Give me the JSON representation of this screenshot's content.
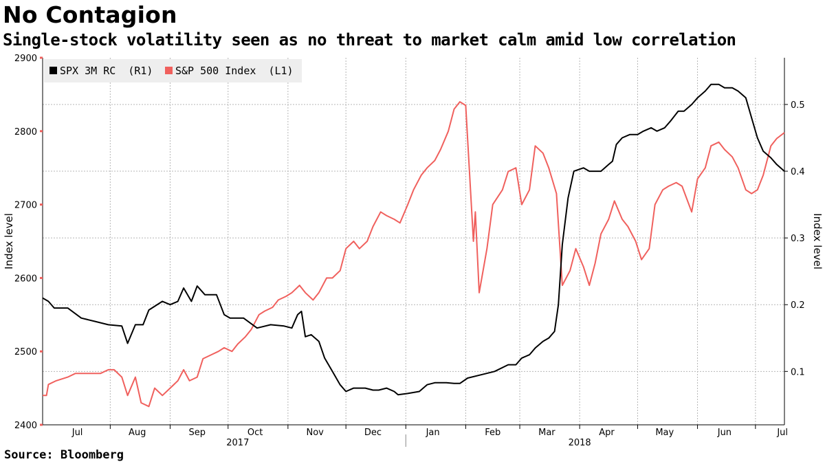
{
  "title": "No Contagion",
  "subtitle": "Single-stock volatility seen as no threat to market calm amid low correlation",
  "source": "Source: Bloomberg",
  "colors": {
    "corr": "#000000",
    "spx": "#f0605d",
    "grid": "#b5b5b5",
    "axis": "#000000"
  },
  "chart_data": {
    "type": "line",
    "title": "No Contagion",
    "subtitle": "Single-stock volatility seen as no threat to market calm amid low correlation",
    "grid": true,
    "legend_position": "top-left",
    "x_range": [
      "2017-06-27",
      "2018-07-16"
    ],
    "x_tick_labels": [
      "Jul",
      "Aug",
      "Sep",
      "Oct",
      "Nov",
      "Dec",
      "Jan",
      "Feb",
      "Mar",
      "Apr",
      "May",
      "Jun",
      "Jul"
    ],
    "x_tick_dates": [
      "2017-07-15",
      "2017-08-15",
      "2017-09-15",
      "2017-10-15",
      "2017-11-15",
      "2017-12-15",
      "2018-01-15",
      "2018-02-15",
      "2018-03-15",
      "2018-04-15",
      "2018-05-15",
      "2018-06-15",
      "2018-07-15"
    ],
    "year_labels": [
      {
        "label": "2017",
        "date": "2017-10-06"
      },
      {
        "label": "2018",
        "date": "2018-04-01"
      }
    ],
    "left_axis": {
      "label": "Index level",
      "ylim": [
        2400,
        2900
      ],
      "ticks": [
        2400,
        2500,
        2600,
        2700,
        2800,
        2900
      ]
    },
    "right_axis": {
      "label": "Index level",
      "ylim": [
        0.02,
        0.57
      ],
      "ticks": [
        0.1,
        0.2,
        0.3,
        0.4,
        0.5
      ]
    },
    "series": [
      {
        "name": "SPX 3M RC  (R1)",
        "axis": "right",
        "color": "#000000",
        "points": [
          [
            "2017-06-27",
            0.21
          ],
          [
            "2017-06-30",
            0.205
          ],
          [
            "2017-07-03",
            0.195
          ],
          [
            "2017-07-10",
            0.195
          ],
          [
            "2017-07-17",
            0.18
          ],
          [
            "2017-07-24",
            0.175
          ],
          [
            "2017-07-31",
            0.17
          ],
          [
            "2017-08-07",
            0.168
          ],
          [
            "2017-08-10",
            0.142
          ],
          [
            "2017-08-14",
            0.17
          ],
          [
            "2017-08-18",
            0.17
          ],
          [
            "2017-08-21",
            0.192
          ],
          [
            "2017-08-28",
            0.205
          ],
          [
            "2017-09-01",
            0.2
          ],
          [
            "2017-09-05",
            0.205
          ],
          [
            "2017-09-08",
            0.225
          ],
          [
            "2017-09-12",
            0.205
          ],
          [
            "2017-09-15",
            0.228
          ],
          [
            "2017-09-19",
            0.215
          ],
          [
            "2017-09-25",
            0.215
          ],
          [
            "2017-09-29",
            0.185
          ],
          [
            "2017-10-02",
            0.18
          ],
          [
            "2017-10-09",
            0.18
          ],
          [
            "2017-10-16",
            0.165
          ],
          [
            "2017-10-23",
            0.17
          ],
          [
            "2017-10-30",
            0.168
          ],
          [
            "2017-11-03",
            0.165
          ],
          [
            "2017-11-06",
            0.185
          ],
          [
            "2017-11-08",
            0.19
          ],
          [
            "2017-11-10",
            0.152
          ],
          [
            "2017-11-13",
            0.155
          ],
          [
            "2017-11-17",
            0.145
          ],
          [
            "2017-11-20",
            0.12
          ],
          [
            "2017-11-24",
            0.1
          ],
          [
            "2017-11-28",
            0.08
          ],
          [
            "2017-12-01",
            0.07
          ],
          [
            "2017-12-05",
            0.075
          ],
          [
            "2017-12-11",
            0.075
          ],
          [
            "2017-12-15",
            0.072
          ],
          [
            "2017-12-18",
            0.072
          ],
          [
            "2017-12-22",
            0.075
          ],
          [
            "2017-12-26",
            0.07
          ],
          [
            "2017-12-28",
            0.065
          ],
          [
            "2018-01-02",
            0.067
          ],
          [
            "2018-01-08",
            0.07
          ],
          [
            "2018-01-12",
            0.08
          ],
          [
            "2018-01-16",
            0.083
          ],
          [
            "2018-01-22",
            0.083
          ],
          [
            "2018-01-26",
            0.082
          ],
          [
            "2018-01-29",
            0.082
          ],
          [
            "2018-02-02",
            0.09
          ],
          [
            "2018-02-09",
            0.095
          ],
          [
            "2018-02-16",
            0.1
          ],
          [
            "2018-02-23",
            0.11
          ],
          [
            "2018-02-27",
            0.11
          ],
          [
            "2018-03-02",
            0.12
          ],
          [
            "2018-03-06",
            0.125
          ],
          [
            "2018-03-09",
            0.135
          ],
          [
            "2018-03-13",
            0.145
          ],
          [
            "2018-03-16",
            0.15
          ],
          [
            "2018-03-19",
            0.16
          ],
          [
            "2018-03-21",
            0.2
          ],
          [
            "2018-03-23",
            0.29
          ],
          [
            "2018-03-26",
            0.36
          ],
          [
            "2018-03-29",
            0.4
          ],
          [
            "2018-04-03",
            0.405
          ],
          [
            "2018-04-06",
            0.4
          ],
          [
            "2018-04-10",
            0.4
          ],
          [
            "2018-04-12",
            0.4
          ],
          [
            "2018-04-16",
            0.41
          ],
          [
            "2018-04-18",
            0.415
          ],
          [
            "2018-04-20",
            0.44
          ],
          [
            "2018-04-23",
            0.45
          ],
          [
            "2018-04-27",
            0.455
          ],
          [
            "2018-05-01",
            0.455
          ],
          [
            "2018-05-04",
            0.46
          ],
          [
            "2018-05-08",
            0.465
          ],
          [
            "2018-05-11",
            0.46
          ],
          [
            "2018-05-15",
            0.465
          ],
          [
            "2018-05-18",
            0.475
          ],
          [
            "2018-05-22",
            0.49
          ],
          [
            "2018-05-25",
            0.49
          ],
          [
            "2018-05-29",
            0.5
          ],
          [
            "2018-06-01",
            0.51
          ],
          [
            "2018-06-05",
            0.52
          ],
          [
            "2018-06-08",
            0.53
          ],
          [
            "2018-06-12",
            0.53
          ],
          [
            "2018-06-15",
            0.525
          ],
          [
            "2018-06-19",
            0.525
          ],
          [
            "2018-06-22",
            0.52
          ],
          [
            "2018-06-26",
            0.51
          ],
          [
            "2018-06-29",
            0.48
          ],
          [
            "2018-07-02",
            0.45
          ],
          [
            "2018-07-05",
            0.43
          ],
          [
            "2018-07-09",
            0.42
          ],
          [
            "2018-07-12",
            0.41
          ],
          [
            "2018-07-16",
            0.4
          ]
        ]
      },
      {
        "name": "S&P 500 Index  (L1)",
        "axis": "left",
        "color": "#f0605d",
        "points": [
          [
            "2017-06-27",
            2440
          ],
          [
            "2017-06-29",
            2440
          ],
          [
            "2017-06-30",
            2455
          ],
          [
            "2017-07-04",
            2460
          ],
          [
            "2017-07-10",
            2465
          ],
          [
            "2017-07-14",
            2470
          ],
          [
            "2017-07-19",
            2470
          ],
          [
            "2017-07-24",
            2470
          ],
          [
            "2017-07-27",
            2470
          ],
          [
            "2017-07-31",
            2475
          ],
          [
            "2017-08-03",
            2475
          ],
          [
            "2017-08-07",
            2465
          ],
          [
            "2017-08-10",
            2440
          ],
          [
            "2017-08-14",
            2465
          ],
          [
            "2017-08-17",
            2430
          ],
          [
            "2017-08-21",
            2425
          ],
          [
            "2017-08-24",
            2450
          ],
          [
            "2017-08-28",
            2440
          ],
          [
            "2017-09-01",
            2450
          ],
          [
            "2017-09-05",
            2460
          ],
          [
            "2017-09-08",
            2475
          ],
          [
            "2017-09-11",
            2460
          ],
          [
            "2017-09-15",
            2465
          ],
          [
            "2017-09-18",
            2490
          ],
          [
            "2017-09-22",
            2495
          ],
          [
            "2017-09-26",
            2500
          ],
          [
            "2017-09-29",
            2505
          ],
          [
            "2017-10-03",
            2500
          ],
          [
            "2017-10-06",
            2510
          ],
          [
            "2017-10-10",
            2520
          ],
          [
            "2017-10-13",
            2530
          ],
          [
            "2017-10-17",
            2550
          ],
          [
            "2017-10-20",
            2555
          ],
          [
            "2017-10-24",
            2560
          ],
          [
            "2017-10-27",
            2570
          ],
          [
            "2017-10-31",
            2575
          ],
          [
            "2017-11-03",
            2580
          ],
          [
            "2017-11-07",
            2590
          ],
          [
            "2017-11-10",
            2580
          ],
          [
            "2017-11-14",
            2570
          ],
          [
            "2017-11-17",
            2580
          ],
          [
            "2017-11-21",
            2600
          ],
          [
            "2017-11-24",
            2600
          ],
          [
            "2017-11-28",
            2610
          ],
          [
            "2017-12-01",
            2640
          ],
          [
            "2017-12-05",
            2650
          ],
          [
            "2017-12-08",
            2640
          ],
          [
            "2017-12-12",
            2650
          ],
          [
            "2017-12-15",
            2670
          ],
          [
            "2017-12-19",
            2690
          ],
          [
            "2017-12-22",
            2685
          ],
          [
            "2017-12-26",
            2680
          ],
          [
            "2017-12-29",
            2675
          ],
          [
            "2018-01-02",
            2700
          ],
          [
            "2018-01-05",
            2720
          ],
          [
            "2018-01-09",
            2740
          ],
          [
            "2018-01-12",
            2750
          ],
          [
            "2018-01-16",
            2760
          ],
          [
            "2018-01-19",
            2775
          ],
          [
            "2018-01-23",
            2800
          ],
          [
            "2018-01-26",
            2830
          ],
          [
            "2018-01-29",
            2840
          ],
          [
            "2018-02-01",
            2835
          ],
          [
            "2018-02-05",
            2650
          ],
          [
            "2018-02-06",
            2690
          ],
          [
            "2018-02-08",
            2580
          ],
          [
            "2018-02-12",
            2640
          ],
          [
            "2018-02-15",
            2700
          ],
          [
            "2018-02-20",
            2720
          ],
          [
            "2018-02-23",
            2745
          ],
          [
            "2018-02-27",
            2750
          ],
          [
            "2018-03-02",
            2700
          ],
          [
            "2018-03-06",
            2720
          ],
          [
            "2018-03-09",
            2780
          ],
          [
            "2018-03-13",
            2770
          ],
          [
            "2018-03-16",
            2750
          ],
          [
            "2018-03-20",
            2715
          ],
          [
            "2018-03-23",
            2590
          ],
          [
            "2018-03-27",
            2610
          ],
          [
            "2018-03-30",
            2640
          ],
          [
            "2018-04-03",
            2615
          ],
          [
            "2018-04-06",
            2590
          ],
          [
            "2018-04-09",
            2620
          ],
          [
            "2018-04-12",
            2660
          ],
          [
            "2018-04-16",
            2680
          ],
          [
            "2018-04-19",
            2705
          ],
          [
            "2018-04-23",
            2680
          ],
          [
            "2018-04-26",
            2670
          ],
          [
            "2018-04-30",
            2650
          ],
          [
            "2018-05-03",
            2625
          ],
          [
            "2018-05-07",
            2640
          ],
          [
            "2018-05-10",
            2700
          ],
          [
            "2018-05-14",
            2720
          ],
          [
            "2018-05-17",
            2725
          ],
          [
            "2018-05-21",
            2730
          ],
          [
            "2018-05-24",
            2725
          ],
          [
            "2018-05-29",
            2690
          ],
          [
            "2018-06-01",
            2735
          ],
          [
            "2018-06-05",
            2750
          ],
          [
            "2018-06-08",
            2780
          ],
          [
            "2018-06-12",
            2785
          ],
          [
            "2018-06-15",
            2775
          ],
          [
            "2018-06-19",
            2765
          ],
          [
            "2018-06-22",
            2750
          ],
          [
            "2018-06-26",
            2720
          ],
          [
            "2018-06-29",
            2715
          ],
          [
            "2018-07-02",
            2720
          ],
          [
            "2018-07-05",
            2740
          ],
          [
            "2018-07-09",
            2780
          ],
          [
            "2018-07-12",
            2790
          ],
          [
            "2018-07-16",
            2798
          ]
        ]
      }
    ]
  }
}
